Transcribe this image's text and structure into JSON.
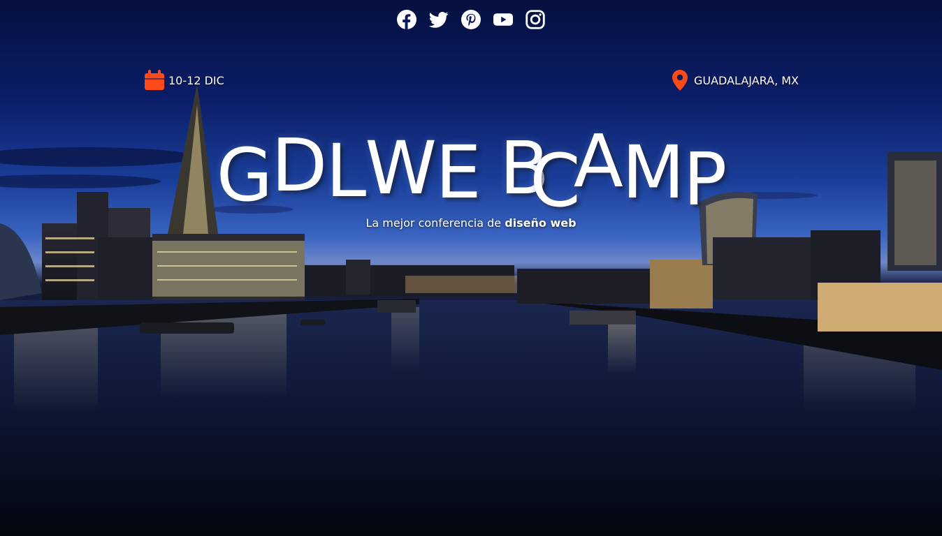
{
  "social": [
    {
      "name": "facebook-icon"
    },
    {
      "name": "twitter-icon"
    },
    {
      "name": "pinterest-icon"
    },
    {
      "name": "youtube-icon"
    },
    {
      "name": "instagram-icon"
    }
  ],
  "event": {
    "date": "10-12 DIC",
    "location": "GUADALAJARA, MX"
  },
  "hero": {
    "title_letters": [
      "G",
      "D",
      "L",
      "W",
      "E",
      "B",
      "C",
      "A",
      "M",
      "P"
    ],
    "subtitle_prefix": "La mejor conferencia de ",
    "subtitle_emphasis": "diseño web"
  },
  "colors": {
    "accent": "#fe4918",
    "text": "#ffffff"
  }
}
